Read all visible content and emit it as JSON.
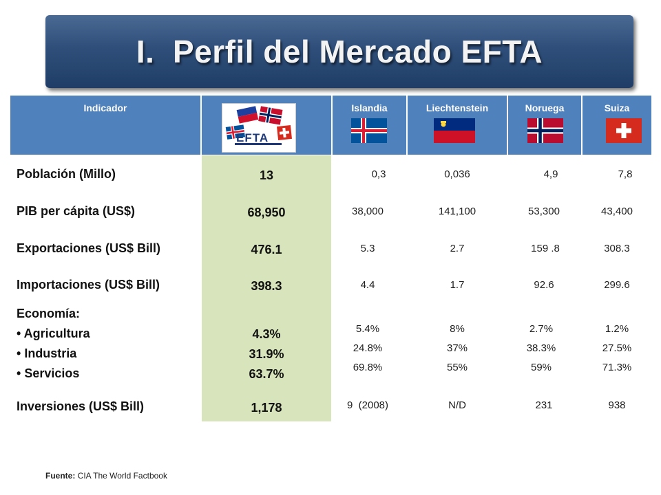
{
  "title": "I.  Perfil del Mercado EFTA",
  "header": {
    "indicador": "Indicador",
    "countries": [
      "Islandia",
      "Liechtenstein",
      "Noruega",
      "Suiza"
    ],
    "logo_text": "EFTA"
  },
  "rows": {
    "poblacion": {
      "label": "Población (Millo)",
      "total": "13",
      "values": [
        "0,3",
        "0,036",
        "4,9",
        "7,8"
      ]
    },
    "pib": {
      "label": "PIB per cápita (US$)",
      "total": "68,950",
      "values": [
        "38,000",
        "141,100",
        "53,300",
        "43,400"
      ]
    },
    "exportaciones": {
      "label": "Exportaciones  (US$  Bill)",
      "total": "476.1",
      "values": [
        "5.3",
        "2.7",
        "159 .8",
        "308.3"
      ]
    },
    "importaciones": {
      "label": "Importaciones  (US$ Bill)",
      "total": "398.3",
      "values": [
        "4.4",
        "1.7",
        "92.6",
        "299.6"
      ]
    },
    "economia": {
      "label": "Economía:",
      "sectors": [
        "Agricultura",
        "Industria",
        "Servicios"
      ],
      "totals": [
        "4.3%",
        "31.9%",
        "63.7%"
      ],
      "values": [
        [
          "5.4%",
          "24.8%",
          "69.8%"
        ],
        [
          "8%",
          "37%",
          "55%"
        ],
        [
          "2.7%",
          "38.3%",
          "59%"
        ],
        [
          "1.2%",
          "27.5%",
          "71.3%"
        ]
      ]
    },
    "inversiones": {
      "label": "Inversiones (US$ Bill)",
      "total": "1,178",
      "values": [
        "9  (2008)",
        "N/D",
        "231",
        "938"
      ]
    }
  },
  "footer": {
    "label": "Fuente:",
    "text": " CIA The World Factbook"
  },
  "colors": {
    "banner": "#2f4f7a",
    "header": "#4f81bd",
    "highlight_column": "#d7e4bc"
  }
}
